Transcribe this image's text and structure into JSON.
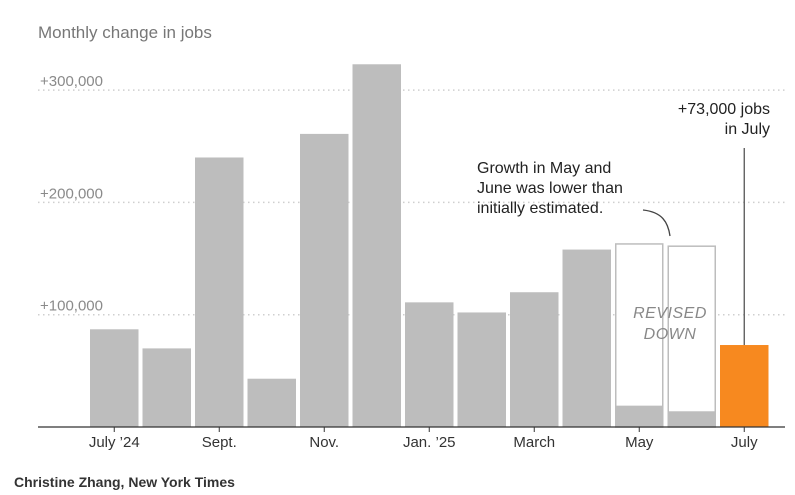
{
  "chart_data": {
    "type": "bar",
    "title": "Monthly change in jobs",
    "ylim": [
      0,
      330000
    ],
    "yticks": [
      {
        "value": 100000,
        "label": "+100,000"
      },
      {
        "value": 200000,
        "label": "+200,000"
      },
      {
        "value": 300000,
        "label": "+300,000"
      }
    ],
    "grid": true,
    "months": [
      "Jul 2024",
      "Aug 2024",
      "Sep 2024",
      "Oct 2024",
      "Nov 2024",
      "Dec 2024",
      "Jan 2025",
      "Feb 2025",
      "Mar 2025",
      "Apr 2025",
      "May 2025",
      "Jun 2025",
      "Jul 2025"
    ],
    "xtick_labels": [
      "July ’24",
      "",
      "Sept.",
      "",
      "Nov.",
      "",
      "Jan. ’25",
      "",
      "March",
      "",
      "May",
      "",
      "July"
    ],
    "values": [
      87000,
      70000,
      240000,
      43000,
      261000,
      323000,
      111000,
      102000,
      120000,
      158000,
      19000,
      14000,
      73000
    ],
    "initial_estimates": [
      null,
      null,
      null,
      null,
      null,
      null,
      null,
      null,
      null,
      null,
      163000,
      161000,
      null
    ],
    "highlight_index": 12,
    "colors": {
      "bar": "#bdbdbd",
      "highlight": "#f7891f",
      "revised_outline": "#bdbdbd",
      "grid": "#cfcfcf",
      "axis": "#333333"
    },
    "annotations": {
      "highlight_label": [
        "+73,000 jobs",
        "in July"
      ],
      "revision_note": [
        "Growth in May and",
        "June was lower than",
        "initially estimated."
      ],
      "revised_label": [
        "REVISED",
        "DOWN"
      ]
    }
  },
  "credit": "Christine Zhang, New York Times"
}
